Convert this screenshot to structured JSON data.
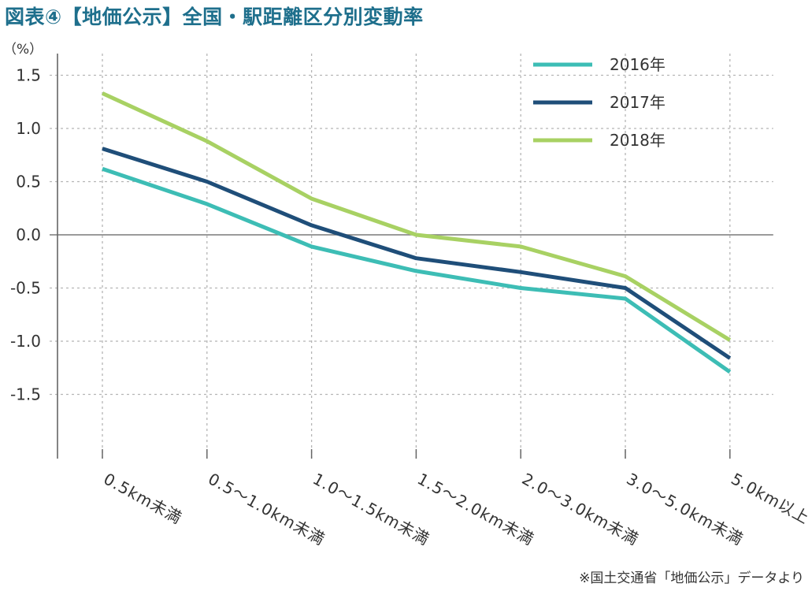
{
  "chart_data": {
    "type": "line",
    "title": "図表④【地価公示】全国・駅距離区分別変動率",
    "ylabel": "（%）",
    "xlabel": "",
    "categories": [
      "0.5km未満",
      "0.5～1.0km未満",
      "1.0～1.5km未満",
      "1.5～2.0km未満",
      "2.0～3.0km未満",
      "3.0～5.0km未満",
      "5.0km以上"
    ],
    "yticks": [
      "1.5",
      "1.0",
      "0.5",
      "0.0",
      "-0.5",
      "-1.0",
      "-1.5"
    ],
    "ylim": [
      -2.1,
      1.75
    ],
    "grid": true,
    "legend_position": "top-right",
    "series": [
      {
        "name": "2016年",
        "color": "#3dbdb5",
        "values": [
          0.62,
          0.29,
          -0.11,
          -0.34,
          -0.5,
          -0.6,
          -1.29
        ]
      },
      {
        "name": "2017年",
        "color": "#1f4e79",
        "values": [
          0.81,
          0.5,
          0.09,
          -0.22,
          -0.35,
          -0.5,
          -1.16
        ]
      },
      {
        "name": "2018年",
        "color": "#a8d163",
        "values": [
          1.33,
          0.88,
          0.34,
          0.0,
          -0.11,
          -0.39,
          -0.99
        ]
      }
    ]
  },
  "source": "※国土交通省「地価公示」データより"
}
